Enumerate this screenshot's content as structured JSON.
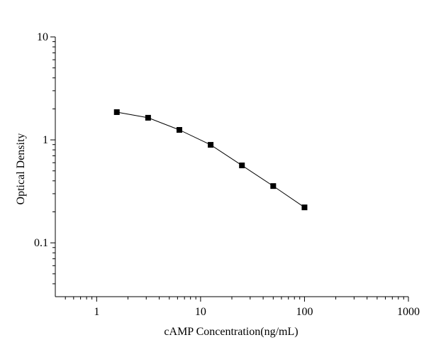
{
  "chart_data": {
    "type": "line",
    "xlabel": "cAMP Concentration(ng/mL)",
    "ylabel": "Optical Density",
    "x": [
      1.5625,
      3.125,
      6.25,
      12.5,
      25,
      50,
      100
    ],
    "values": [
      1.86,
      1.64,
      1.25,
      0.895,
      0.565,
      0.356,
      0.221
    ],
    "color": "#000000",
    "marker": "square",
    "xscale": "log",
    "yscale": "log",
    "xlim": [
      0.4,
      1000
    ],
    "ylim": [
      0.03,
      10
    ],
    "xticks": [
      1,
      10,
      100,
      1000
    ],
    "yticks": [
      0.1,
      1,
      10
    ],
    "minor_ticks": true
  }
}
